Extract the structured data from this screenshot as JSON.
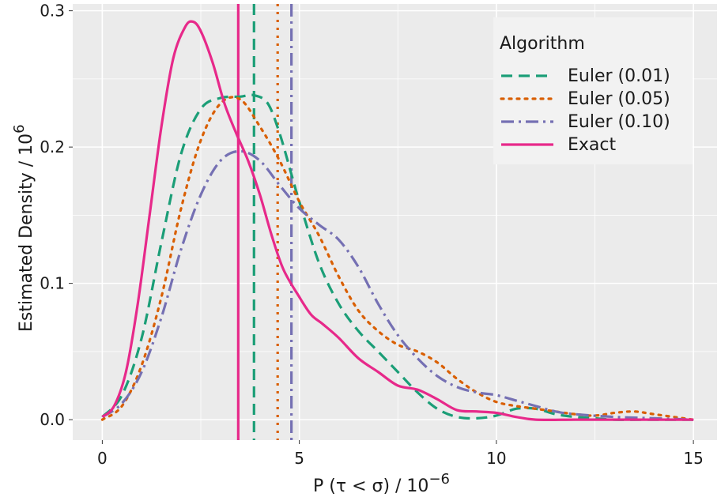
{
  "chart_data": {
    "type": "line",
    "xlabel": "P (τ < σ) / 10",
    "xlabel_exponent": "−6",
    "ylabel": "Estimated Density / 10",
    "ylabel_exponent": "6",
    "xlim": [
      -0.75,
      15.6
    ],
    "ylim": [
      -0.015,
      0.305
    ],
    "xticks": [
      0,
      5,
      10,
      15
    ],
    "xtick_labels": [
      "0",
      "5",
      "10",
      "15"
    ],
    "yticks": [
      0.0,
      0.1,
      0.2,
      0.3
    ],
    "ytick_labels": [
      "0.0",
      "0.1",
      "0.2",
      "0.3"
    ],
    "grid": true,
    "legend": {
      "title": "Algorithm",
      "placement": "top-right"
    },
    "series": [
      {
        "name": "Euler (0.01)",
        "color": "#1b9e77",
        "dash": "dashed",
        "vline": 3.85,
        "x": [
          0,
          0.5,
          1.0,
          1.5,
          2.0,
          2.5,
          3.0,
          3.5,
          3.85,
          4.2,
          4.5,
          4.8,
          5.0,
          5.5,
          6.0,
          6.5,
          7.0,
          7.5,
          8.0,
          8.5,
          9.0,
          9.5,
          10.0,
          10.5,
          11.0,
          11.5,
          12.0,
          12.5,
          13.0,
          14.0,
          15.0
        ],
        "y": [
          0.002,
          0.018,
          0.06,
          0.13,
          0.195,
          0.228,
          0.236,
          0.237,
          0.238,
          0.232,
          0.21,
          0.18,
          0.16,
          0.115,
          0.085,
          0.065,
          0.05,
          0.035,
          0.02,
          0.008,
          0.002,
          0.001,
          0.003,
          0.008,
          0.008,
          0.004,
          0.002,
          0.001,
          0.0,
          0.0,
          0.0
        ]
      },
      {
        "name": "Euler (0.05)",
        "color": "#d95f02",
        "dash": "dotted",
        "vline": 4.45,
        "x": [
          0,
          0.5,
          1.0,
          1.5,
          2.0,
          2.5,
          3.0,
          3.5,
          4.0,
          4.5,
          5.0,
          5.5,
          6.0,
          6.5,
          7.0,
          7.5,
          8.0,
          8.5,
          9.0,
          9.5,
          10.0,
          10.5,
          11.0,
          11.5,
          12.0,
          12.5,
          13.0,
          13.5,
          14.0,
          15.0
        ],
        "y": [
          0.0,
          0.01,
          0.04,
          0.09,
          0.155,
          0.205,
          0.232,
          0.235,
          0.215,
          0.19,
          0.16,
          0.135,
          0.105,
          0.08,
          0.065,
          0.055,
          0.05,
          0.042,
          0.03,
          0.02,
          0.013,
          0.01,
          0.008,
          0.006,
          0.004,
          0.003,
          0.005,
          0.006,
          0.004,
          0.0
        ]
      },
      {
        "name": "Euler (0.10)",
        "color": "#7570b3",
        "dash": "dashdot",
        "vline": 4.8,
        "x": [
          0,
          0.5,
          1.0,
          1.5,
          2.0,
          2.5,
          3.0,
          3.5,
          4.0,
          4.5,
          5.0,
          5.5,
          6.0,
          6.5,
          7.0,
          7.5,
          8.0,
          8.5,
          9.0,
          9.5,
          10.0,
          10.5,
          11.0,
          11.5,
          12.0,
          13.0,
          14.0,
          15.0
        ],
        "y": [
          0.002,
          0.012,
          0.035,
          0.075,
          0.125,
          0.165,
          0.19,
          0.197,
          0.19,
          0.172,
          0.155,
          0.143,
          0.132,
          0.112,
          0.085,
          0.062,
          0.045,
          0.032,
          0.024,
          0.02,
          0.018,
          0.014,
          0.01,
          0.006,
          0.004,
          0.002,
          0.001,
          0.0
        ]
      },
      {
        "name": "Exact",
        "color": "#e7298a",
        "dash": "solid",
        "vline": 3.45,
        "x": [
          0,
          0.3,
          0.6,
          0.9,
          1.2,
          1.5,
          1.8,
          2.1,
          2.3,
          2.5,
          2.8,
          3.1,
          3.4,
          3.7,
          4.0,
          4.3,
          4.6,
          5.0,
          5.3,
          5.6,
          6.0,
          6.5,
          7.0,
          7.5,
          8.0,
          8.5,
          9.0,
          9.5,
          10.0,
          10.5,
          11.0,
          12.0,
          13.0,
          14.0,
          15.0
        ],
        "y": [
          0.002,
          0.01,
          0.035,
          0.085,
          0.15,
          0.215,
          0.265,
          0.288,
          0.292,
          0.285,
          0.262,
          0.232,
          0.21,
          0.19,
          0.165,
          0.135,
          0.11,
          0.09,
          0.077,
          0.07,
          0.06,
          0.045,
          0.035,
          0.025,
          0.022,
          0.015,
          0.007,
          0.006,
          0.005,
          0.002,
          0.0,
          0.0,
          0.0,
          0.0,
          0.0
        ]
      }
    ]
  }
}
